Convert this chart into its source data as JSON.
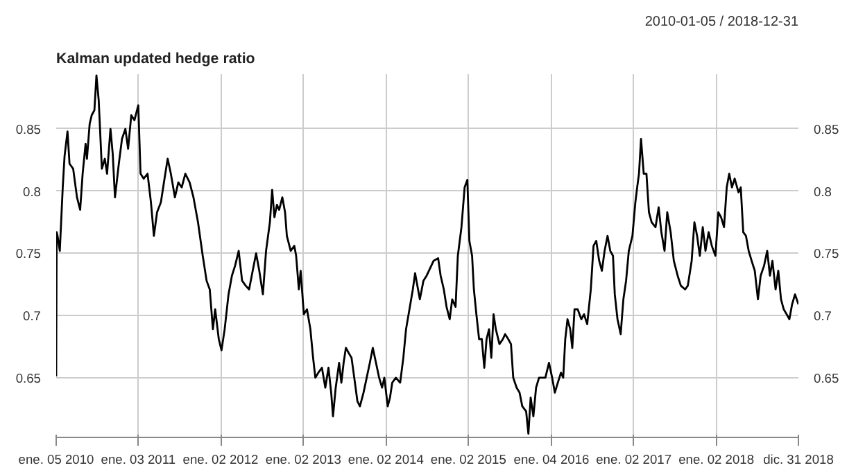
{
  "chart_data": {
    "type": "line",
    "title": "Kalman updated hedge ratio",
    "annotations": [
      "2010-01-05 / 2018-12-31"
    ],
    "xlim": [
      "2010-01-05",
      "2018-12-31"
    ],
    "xticks": [
      {
        "value": "2010-01-05",
        "label": "ene. 05 2010"
      },
      {
        "value": "2011-01-03",
        "label": "ene. 03 2011"
      },
      {
        "value": "2012-01-02",
        "label": "ene. 02 2012"
      },
      {
        "value": "2013-01-02",
        "label": "ene. 02 2013"
      },
      {
        "value": "2014-01-02",
        "label": "ene. 02 2014"
      },
      {
        "value": "2015-01-02",
        "label": "ene. 02 2015"
      },
      {
        "value": "2016-01-04",
        "label": "ene. 04 2016"
      },
      {
        "value": "2017-01-02",
        "label": "ene. 02 2017"
      },
      {
        "value": "2018-01-02",
        "label": "ene. 02 2018"
      },
      {
        "value": "2018-12-31",
        "label": "dic. 31 2018"
      }
    ],
    "ylim": [
      0.602,
      0.894
    ],
    "yticks": [
      0.65,
      0.7,
      0.75,
      0.8,
      0.85
    ],
    "y2lim": [
      0.602,
      0.894
    ],
    "y2ticks": [
      0.65,
      0.7,
      0.75,
      0.8,
      0.85
    ],
    "grid": true,
    "line_style": "solid",
    "x": [
      "2010-01-05",
      "2010-01-07",
      "2010-01-11",
      "2010-01-21",
      "2010-02-03",
      "2010-02-11",
      "2010-02-24",
      "2010-03-05",
      "2010-03-21",
      "2010-04-07",
      "2010-04-21",
      "2010-05-02",
      "2010-05-15",
      "2010-05-21",
      "2010-06-02",
      "2010-06-11",
      "2010-06-23",
      "2010-07-02",
      "2010-07-12",
      "2010-07-26",
      "2010-08-08",
      "2010-08-18",
      "2010-09-02",
      "2010-09-12",
      "2010-09-22",
      "2010-10-09",
      "2010-10-23",
      "2010-11-07",
      "2010-11-19",
      "2010-12-03",
      "2010-12-17",
      "2011-01-03",
      "2011-01-13",
      "2011-01-27",
      "2011-02-13",
      "2011-02-28",
      "2011-03-13",
      "2011-03-27",
      "2011-04-13",
      "2011-04-29",
      "2011-05-13",
      "2011-05-27",
      "2011-06-14",
      "2011-06-29",
      "2011-07-14",
      "2011-07-30",
      "2011-08-18",
      "2011-09-04",
      "2011-09-24",
      "2011-10-15",
      "2011-11-01",
      "2011-11-15",
      "2011-11-29",
      "2011-12-09",
      "2011-12-25",
      "2012-01-06",
      "2012-01-20",
      "2012-02-06",
      "2012-02-21",
      "2012-03-06",
      "2012-03-22",
      "2012-04-06",
      "2012-04-22",
      "2012-05-07",
      "2012-05-23",
      "2012-06-07",
      "2012-06-21",
      "2012-07-07",
      "2012-07-21",
      "2012-08-07",
      "2012-08-17",
      "2012-08-27",
      "2012-09-07",
      "2012-09-17",
      "2012-10-01",
      "2012-10-13",
      "2012-10-21",
      "2012-11-07",
      "2012-11-23",
      "2012-12-01",
      "2012-12-13",
      "2012-12-21",
      "2013-01-04",
      "2013-01-18",
      "2013-02-02",
      "2013-02-14",
      "2013-02-24",
      "2013-03-09",
      "2013-03-25",
      "2013-04-09",
      "2013-04-23",
      "2013-05-05",
      "2013-05-13",
      "2013-05-25",
      "2013-06-09",
      "2013-06-19",
      "2013-06-29",
      "2013-07-09",
      "2013-07-21",
      "2013-08-03",
      "2013-08-15",
      "2013-08-29",
      "2013-09-09",
      "2013-09-25",
      "2013-10-09",
      "2013-10-23",
      "2013-11-05",
      "2013-11-19",
      "2013-12-03",
      "2013-12-16",
      "2013-12-26",
      "2014-01-10",
      "2014-01-20",
      "2014-01-30",
      "2014-02-15",
      "2014-03-06",
      "2014-03-20",
      "2014-04-01",
      "2014-04-16",
      "2014-05-01",
      "2014-05-11",
      "2014-05-21",
      "2014-06-01",
      "2014-06-17",
      "2014-07-01",
      "2014-08-01",
      "2014-08-21",
      "2014-09-01",
      "2014-09-15",
      "2014-09-27",
      "2014-10-11",
      "2014-10-22",
      "2014-11-06",
      "2014-11-16",
      "2014-12-02",
      "2014-12-16",
      "2014-12-28",
      "2015-01-06",
      "2015-01-18",
      "2015-01-26",
      "2015-02-06",
      "2015-02-18",
      "2015-03-02",
      "2015-03-13",
      "2015-03-23",
      "2015-04-03",
      "2015-04-13",
      "2015-04-23",
      "2015-05-03",
      "2015-05-19",
      "2015-06-03",
      "2015-06-13",
      "2015-06-27",
      "2015-07-09",
      "2015-07-19",
      "2015-08-03",
      "2015-08-16",
      "2015-08-28",
      "2015-09-14",
      "2015-09-24",
      "2015-10-04",
      "2015-10-16",
      "2015-10-28",
      "2015-11-10",
      "2015-11-24",
      "2015-12-08",
      "2015-12-24",
      "2016-01-07",
      "2016-01-19",
      "2016-02-01",
      "2016-02-15",
      "2016-02-25",
      "2016-03-05",
      "2016-03-15",
      "2016-03-27",
      "2016-04-05",
      "2016-04-15",
      "2016-04-29",
      "2016-05-15",
      "2016-05-27",
      "2016-06-10",
      "2016-06-26",
      "2016-07-08",
      "2016-07-20",
      "2016-08-02",
      "2016-08-14",
      "2016-08-26",
      "2016-09-08",
      "2016-09-20",
      "2016-10-02",
      "2016-10-10",
      "2016-10-22",
      "2016-11-05",
      "2016-11-17",
      "2016-11-29",
      "2016-12-11",
      "2016-12-27",
      "2017-01-09",
      "2017-01-17",
      "2017-01-25",
      "2017-02-03",
      "2017-02-15",
      "2017-02-27",
      "2017-03-10",
      "2017-03-22",
      "2017-04-08",
      "2017-04-22",
      "2017-05-04",
      "2017-05-18",
      "2017-05-30",
      "2017-06-14",
      "2017-06-28",
      "2017-07-15",
      "2017-07-29",
      "2017-08-17",
      "2017-08-29",
      "2017-09-15",
      "2017-09-27",
      "2017-10-09",
      "2017-10-21",
      "2017-11-03",
      "2017-11-15",
      "2017-11-29",
      "2017-12-13",
      "2017-12-29",
      "2018-01-11",
      "2018-01-23",
      "2018-02-05",
      "2018-02-17",
      "2018-02-28",
      "2018-03-12",
      "2018-03-24",
      "2018-04-10",
      "2018-04-20",
      "2018-05-01",
      "2018-05-13",
      "2018-05-25",
      "2018-06-07",
      "2018-06-21",
      "2018-07-05",
      "2018-07-17",
      "2018-08-01",
      "2018-08-15",
      "2018-08-27",
      "2018-09-07",
      "2018-09-21",
      "2018-10-03",
      "2018-10-15",
      "2018-10-27",
      "2018-11-09",
      "2018-11-21",
      "2018-12-03",
      "2018-12-16",
      "2018-12-31"
    ],
    "series": [
      {
        "color": "#000000",
        "values": [
          0.651,
          0.767,
          0.764,
          0.752,
          0.803,
          0.828,
          0.848,
          0.822,
          0.818,
          0.795,
          0.785,
          0.814,
          0.838,
          0.826,
          0.854,
          0.861,
          0.865,
          0.893,
          0.873,
          0.818,
          0.826,
          0.814,
          0.85,
          0.83,
          0.795,
          0.822,
          0.842,
          0.85,
          0.834,
          0.861,
          0.857,
          0.869,
          0.814,
          0.81,
          0.814,
          0.791,
          0.764,
          0.783,
          0.791,
          0.81,
          0.826,
          0.814,
          0.795,
          0.807,
          0.803,
          0.814,
          0.807,
          0.795,
          0.775,
          0.748,
          0.728,
          0.721,
          0.689,
          0.705,
          0.681,
          0.672,
          0.689,
          0.717,
          0.732,
          0.74,
          0.752,
          0.728,
          0.724,
          0.721,
          0.736,
          0.75,
          0.736,
          0.717,
          0.752,
          0.775,
          0.801,
          0.779,
          0.789,
          0.785,
          0.795,
          0.783,
          0.764,
          0.752,
          0.756,
          0.748,
          0.721,
          0.736,
          0.701,
          0.705,
          0.689,
          0.666,
          0.65,
          0.654,
          0.658,
          0.642,
          0.658,
          0.638,
          0.619,
          0.642,
          0.662,
          0.646,
          0.662,
          0.674,
          0.67,
          0.666,
          0.65,
          0.631,
          0.627,
          0.638,
          0.65,
          0.662,
          0.674,
          0.662,
          0.65,
          0.642,
          0.65,
          0.627,
          0.634,
          0.646,
          0.65,
          0.646,
          0.666,
          0.689,
          0.705,
          0.721,
          0.734,
          0.724,
          0.713,
          0.728,
          0.732,
          0.744,
          0.746,
          0.732,
          0.721,
          0.707,
          0.697,
          0.713,
          0.707,
          0.748,
          0.771,
          0.803,
          0.809,
          0.76,
          0.748,
          0.721,
          0.701,
          0.681,
          0.681,
          0.658,
          0.681,
          0.689,
          0.666,
          0.701,
          0.689,
          0.677,
          0.681,
          0.685,
          0.681,
          0.677,
          0.65,
          0.642,
          0.638,
          0.627,
          0.623,
          0.605,
          0.634,
          0.619,
          0.642,
          0.65,
          0.65,
          0.65,
          0.662,
          0.65,
          0.638,
          0.646,
          0.654,
          0.65,
          0.681,
          0.697,
          0.689,
          0.674,
          0.705,
          0.705,
          0.697,
          0.701,
          0.693,
          0.721,
          0.756,
          0.76,
          0.744,
          0.736,
          0.752,
          0.764,
          0.752,
          0.748,
          0.717,
          0.697,
          0.685,
          0.713,
          0.728,
          0.752,
          0.764,
          0.791,
          0.803,
          0.814,
          0.842,
          0.814,
          0.814,
          0.783,
          0.775,
          0.771,
          0.787,
          0.767,
          0.752,
          0.783,
          0.767,
          0.744,
          0.732,
          0.724,
          0.721,
          0.724,
          0.744,
          0.775,
          0.764,
          0.748,
          0.771,
          0.752,
          0.767,
          0.756,
          0.748,
          0.783,
          0.779,
          0.771,
          0.803,
          0.814,
          0.803,
          0.81,
          0.799,
          0.803,
          0.767,
          0.764,
          0.752,
          0.744,
          0.736,
          0.713,
          0.732,
          0.74,
          0.752,
          0.732,
          0.744,
          0.721,
          0.736,
          0.713,
          0.705,
          0.701,
          0.697,
          0.709,
          0.717,
          0.709
        ]
      }
    ]
  }
}
